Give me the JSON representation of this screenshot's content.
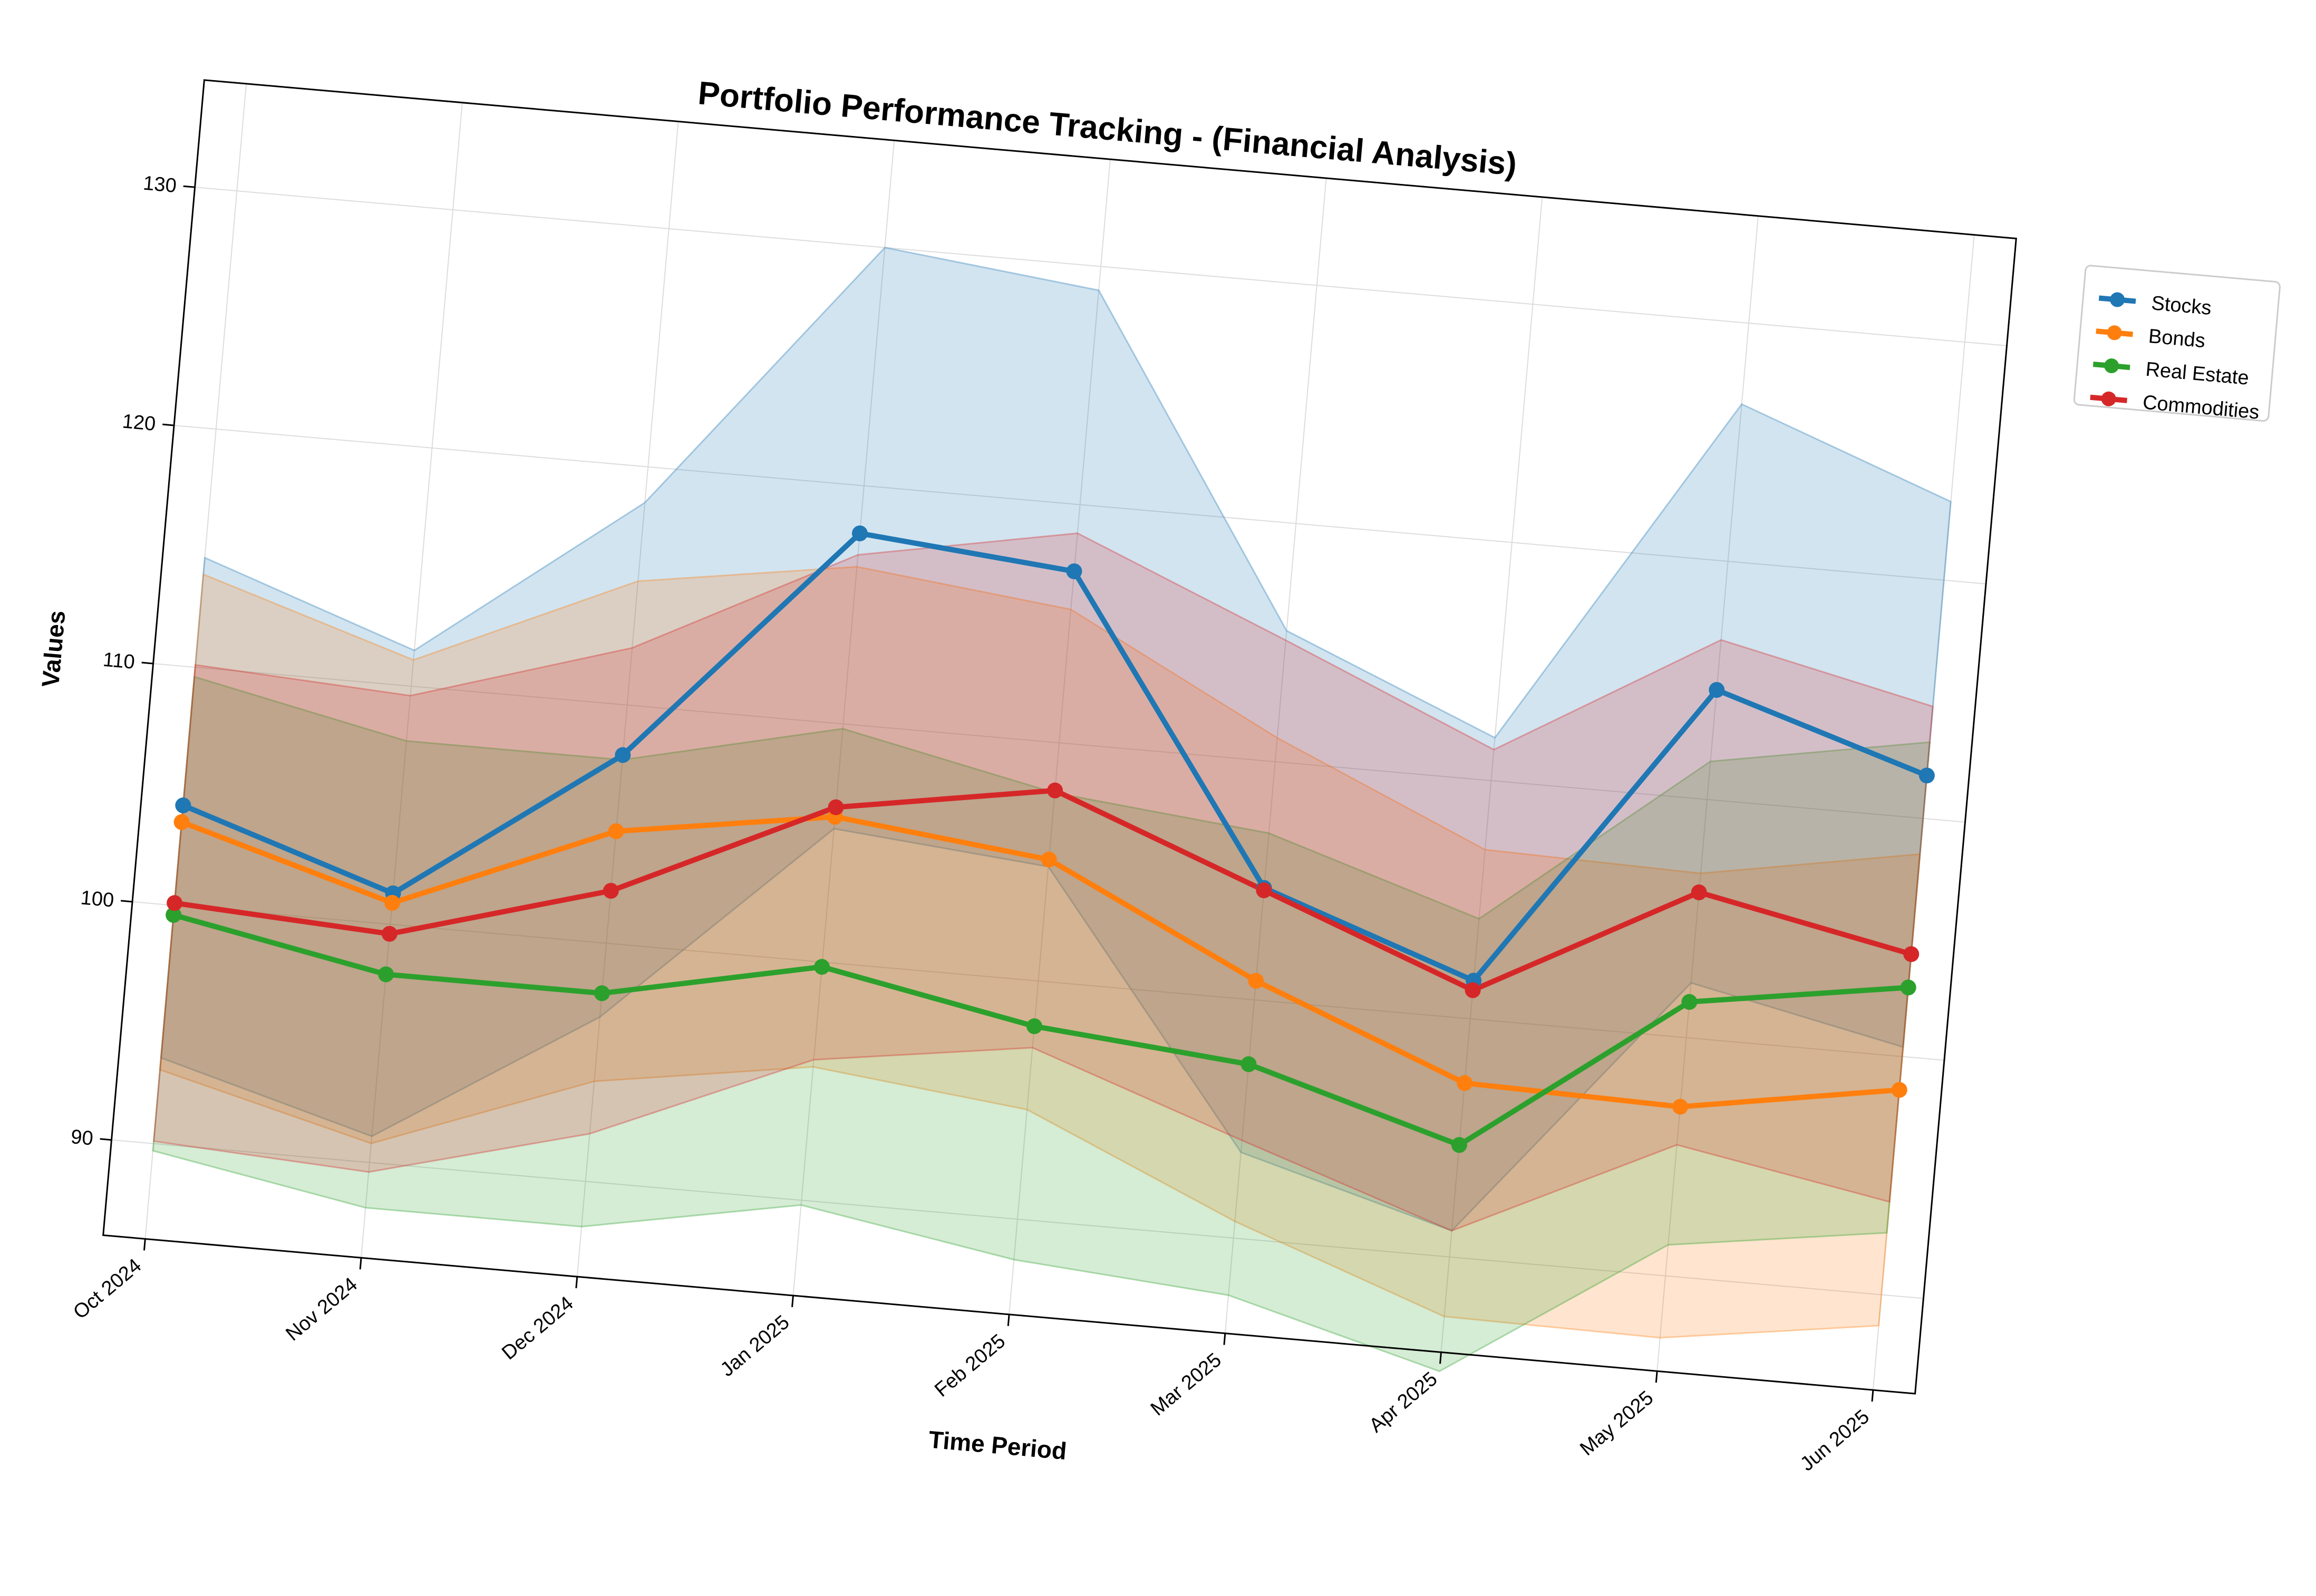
{
  "chart_data": {
    "type": "line",
    "title": "Portfolio Performance Tracking - (Financial Analysis)",
    "xlabel": "Time Period",
    "ylabel": "Values",
    "categories": [
      "Oct 2024",
      "Nov 2024",
      "Dec 2024",
      "Jan 2025",
      "Feb 2025",
      "Mar 2025",
      "Apr 2025",
      "May 2025",
      "Jun 2025"
    ],
    "y_ticks": [
      90,
      100,
      110,
      120,
      130
    ],
    "ylim": [
      86,
      134.5
    ],
    "grid": true,
    "legend_position": "upper right, outside plot",
    "series": [
      {
        "name": "Stocks",
        "color": "#1f77b4",
        "values": [
          104.2,
          101.3,
          107.9,
          118.0,
          117.2,
          104.7,
          101.6,
          114.6,
          111.8
        ],
        "upper": [
          114.6,
          111.5,
          118.5,
          130.0,
          129.0,
          115.5,
          111.8,
          126.6,
          123.3
        ],
        "lower": [
          93.6,
          91.1,
          96.9,
          105.6,
          104.8,
          93.6,
          91.1,
          102.3,
          100.4
        ]
      },
      {
        "name": "Bonds",
        "color": "#ff7f0e",
        "values": [
          103.5,
          100.9,
          104.7,
          106.1,
          105.1,
          100.8,
          97.3,
          97.1,
          98.6
        ],
        "upper": [
          113.9,
          111.1,
          115.2,
          116.6,
          115.6,
          111.0,
          107.1,
          106.9,
          108.5
        ],
        "lower": [
          93.1,
          90.8,
          94.2,
          95.6,
          94.6,
          90.7,
          87.5,
          87.4,
          88.7
        ]
      },
      {
        "name": "Real Estate",
        "color": "#2ca02c",
        "values": [
          99.6,
          97.9,
          97.9,
          99.8,
          98.1,
          97.3,
          94.7,
          101.5,
          102.9
        ],
        "upper": [
          109.6,
          107.7,
          107.7,
          109.8,
          107.9,
          107.0,
          104.2,
          111.6,
          113.2
        ],
        "lower": [
          89.7,
          88.1,
          88.1,
          89.8,
          88.3,
          87.6,
          85.2,
          91.3,
          92.6
        ]
      },
      {
        "name": "Commodities",
        "color": "#d62728",
        "values": [
          100.1,
          99.6,
          102.2,
          106.5,
          108.0,
          104.6,
          101.2,
          106.1,
          104.3
        ],
        "upper": [
          110.1,
          109.6,
          112.4,
          117.1,
          118.8,
          115.1,
          111.3,
          116.7,
          114.7
        ],
        "lower": [
          90.1,
          89.6,
          92.0,
          95.9,
          97.2,
          94.1,
          91.1,
          95.5,
          93.9
        ]
      }
    ]
  }
}
